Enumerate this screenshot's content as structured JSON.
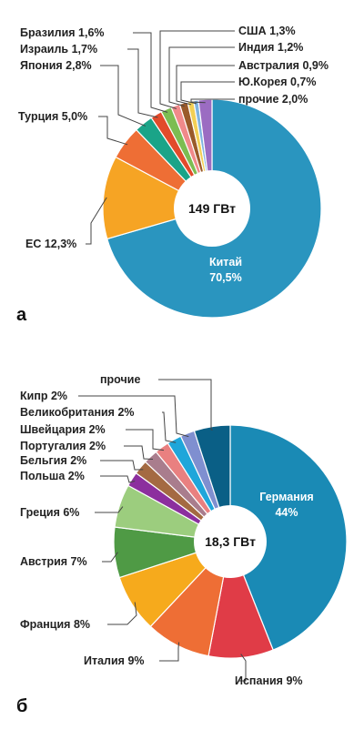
{
  "chart_data": [
    {
      "type": "pie",
      "panel_label": "а",
      "center_label": "149 ГВт",
      "slices": [
        {
          "name": "Китай",
          "value": 70.5,
          "label": "Китай",
          "value_label": "70,5%",
          "color": "#2a95bf"
        },
        {
          "name": "ЕС",
          "value": 12.3,
          "label": "ЕС 12,3%",
          "color": "#f6a424"
        },
        {
          "name": "Турция",
          "value": 5.0,
          "label": "Турция 5,0%",
          "color": "#ee6e35"
        },
        {
          "name": "Япония",
          "value": 2.8,
          "label": "Япония 2,8%",
          "color": "#1aa488"
        },
        {
          "name": "Израиль",
          "value": 1.7,
          "label": "Израиль 1,7%",
          "color": "#e24b2b"
        },
        {
          "name": "Бразилия",
          "value": 1.6,
          "label": "Бразилия 1,6%",
          "color": "#7cbd52"
        },
        {
          "name": "США",
          "value": 1.3,
          "label": "США 1,3%",
          "color": "#f08a8a"
        },
        {
          "name": "Индия",
          "value": 1.2,
          "label": "Индия 1,2%",
          "color": "#9a5a2a"
        },
        {
          "name": "Австралия",
          "value": 0.9,
          "label": "Австралия 0,9%",
          "color": "#f2cf55"
        },
        {
          "name": "Ю.Корея",
          "value": 0.7,
          "label": "Ю.Корея 0,7%",
          "color": "#7fb4e0"
        },
        {
          "name": "прочие",
          "value": 2.0,
          "label": "прочие 2,0%",
          "color": "#9b6cc2"
        }
      ]
    },
    {
      "type": "pie",
      "panel_label": "б",
      "center_label": "18,3 ГВт",
      "slices": [
        {
          "name": "Германия",
          "value": 44,
          "label": "Германия",
          "value_label": "44%",
          "color": "#1a8ab5"
        },
        {
          "name": "Испания",
          "value": 9,
          "label": "Испания 9%",
          "color": "#e03c47"
        },
        {
          "name": "Италия",
          "value": 9,
          "label": "Италия 9%",
          "color": "#ee6e35"
        },
        {
          "name": "Франция",
          "value": 8,
          "label": "Франция 8%",
          "color": "#f6aa1c"
        },
        {
          "name": "Австрия",
          "value": 7,
          "label": "Австрия 7%",
          "color": "#4f9a45"
        },
        {
          "name": "Греция",
          "value": 6,
          "label": "Греция 6%",
          "color": "#9ccd7e"
        },
        {
          "name": "Польша",
          "value": 2,
          "label": "Польша 2%",
          "color": "#8c2f9e"
        },
        {
          "name": "Бельгия",
          "value": 2,
          "label": "Бельгия 2%",
          "color": "#a46a42"
        },
        {
          "name": "Португалия",
          "value": 2,
          "label": "Португалия 2%",
          "color": "#a97d8d"
        },
        {
          "name": "Швейцария",
          "value": 2,
          "label": "Швейцария 2%",
          "color": "#e98080"
        },
        {
          "name": "Великобритания",
          "value": 2,
          "label": "Великобритания 2%",
          "color": "#1fa6da"
        },
        {
          "name": "Кипр",
          "value": 2,
          "label": "Кипр 2%",
          "color": "#7f8fd0"
        },
        {
          "name": "прочие",
          "value": 5,
          "label": "прочие",
          "color": "#0a5f86"
        }
      ]
    }
  ]
}
